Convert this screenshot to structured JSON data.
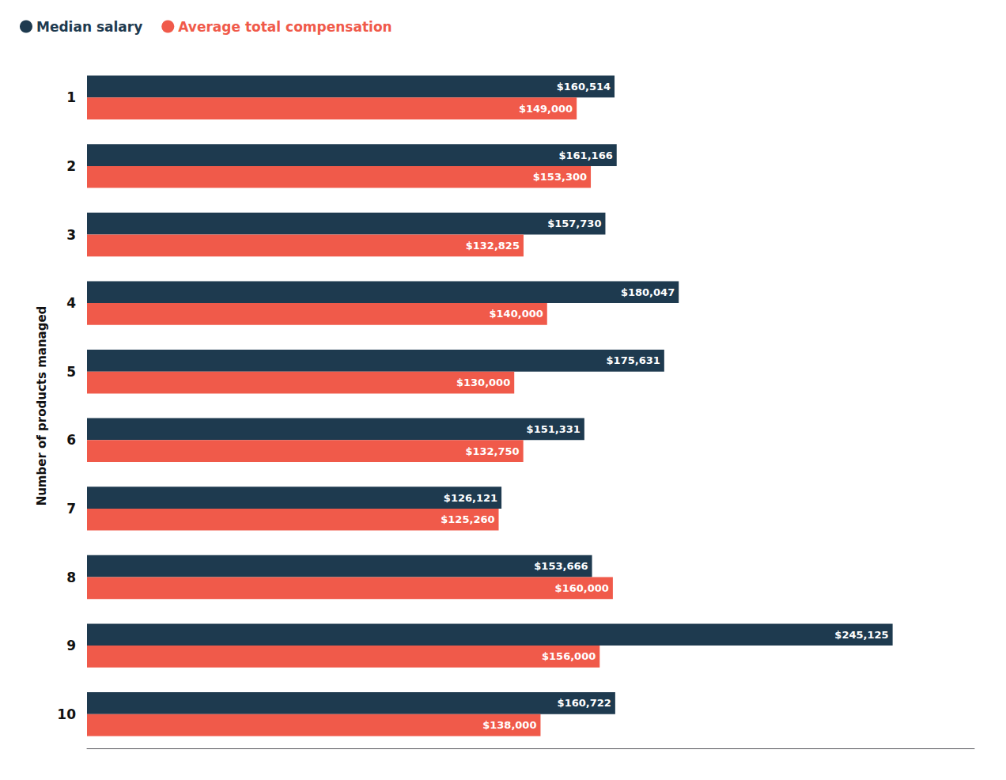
{
  "chart_data": {
    "type": "bar",
    "orientation": "horizontal",
    "ylabel": "Number of products managed",
    "categories": [
      1,
      2,
      3,
      4,
      5,
      6,
      7,
      8,
      9,
      10
    ],
    "series": [
      {
        "name": "Median salary",
        "color": "#1e3a4f",
        "values": [
          160514,
          161166,
          157730,
          180047,
          175631,
          151331,
          126121,
          153666,
          245125,
          160722
        ],
        "value_labels": [
          "$160,514",
          "$161,166",
          "$157,730",
          "$180,047",
          "$175,631",
          "$151,331",
          "$126,121",
          "$153,666",
          "$245,125",
          "$160,722"
        ]
      },
      {
        "name": "Average total compensation",
        "color": "#f05a4a",
        "values": [
          149000,
          153300,
          132825,
          140000,
          130000,
          132750,
          125260,
          160000,
          156000,
          138000
        ],
        "value_labels": [
          "$149,000",
          "$153,300",
          "$132,825",
          "$140,000",
          "$130,000",
          "$132,750",
          "$125,260",
          "$160,000",
          "$156,000",
          "$138,000"
        ]
      }
    ],
    "xlim": [
      0,
      270000
    ],
    "data_labels": true,
    "tick_labels": "y",
    "grid": false,
    "legend": "upper left"
  }
}
